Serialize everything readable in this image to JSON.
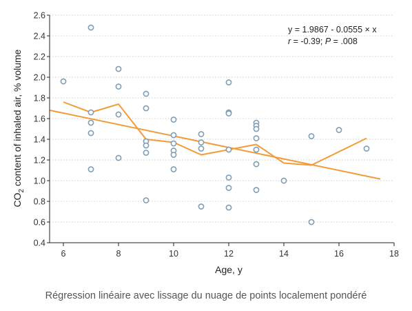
{
  "chart_data": {
    "type": "scatter",
    "xlabel": "Age, y",
    "ylabel_pre": "CO",
    "ylabel_sub": "2",
    "ylabel_post": " content of inhaled air, % volume",
    "xlim": [
      5.5,
      18
    ],
    "ylim": [
      0.4,
      2.6
    ],
    "x_ticks": [
      6,
      8,
      10,
      12,
      14,
      16,
      18
    ],
    "y_ticks": [
      0.4,
      0.6,
      0.8,
      1.0,
      1.2,
      1.4,
      1.6,
      1.8,
      2.0,
      2.2,
      2.4,
      2.6
    ],
    "grid": "horizontal",
    "points": [
      {
        "x": 6,
        "y": 1.96
      },
      {
        "x": 7,
        "y": 2.48
      },
      {
        "x": 7,
        "y": 1.66
      },
      {
        "x": 7,
        "y": 1.56
      },
      {
        "x": 7,
        "y": 1.46
      },
      {
        "x": 7,
        "y": 1.11
      },
      {
        "x": 8,
        "y": 2.08
      },
      {
        "x": 8,
        "y": 1.91
      },
      {
        "x": 8,
        "y": 1.64
      },
      {
        "x": 8,
        "y": 1.22
      },
      {
        "x": 9,
        "y": 1.84
      },
      {
        "x": 9,
        "y": 1.7
      },
      {
        "x": 9,
        "y": 1.38
      },
      {
        "x": 9,
        "y": 1.34
      },
      {
        "x": 9,
        "y": 1.27
      },
      {
        "x": 9,
        "y": 0.81
      },
      {
        "x": 10,
        "y": 1.59
      },
      {
        "x": 10,
        "y": 1.44
      },
      {
        "x": 10,
        "y": 1.36
      },
      {
        "x": 10,
        "y": 1.29
      },
      {
        "x": 10,
        "y": 1.25
      },
      {
        "x": 10,
        "y": 1.11
      },
      {
        "x": 11,
        "y": 1.45
      },
      {
        "x": 11,
        "y": 1.37
      },
      {
        "x": 11,
        "y": 1.31
      },
      {
        "x": 11,
        "y": 0.75
      },
      {
        "x": 12,
        "y": 1.95
      },
      {
        "x": 12,
        "y": 1.66
      },
      {
        "x": 12,
        "y": 1.65
      },
      {
        "x": 12,
        "y": 1.3
      },
      {
        "x": 12,
        "y": 1.03
      },
      {
        "x": 12,
        "y": 0.93
      },
      {
        "x": 12,
        "y": 0.74
      },
      {
        "x": 13,
        "y": 1.56
      },
      {
        "x": 13,
        "y": 1.53
      },
      {
        "x": 13,
        "y": 1.5
      },
      {
        "x": 13,
        "y": 1.41
      },
      {
        "x": 13,
        "y": 1.3
      },
      {
        "x": 13,
        "y": 1.16
      },
      {
        "x": 13,
        "y": 0.91
      },
      {
        "x": 14,
        "y": 1.0
      },
      {
        "x": 15,
        "y": 1.43
      },
      {
        "x": 15,
        "y": 0.6
      },
      {
        "x": 16,
        "y": 1.49
      },
      {
        "x": 17,
        "y": 1.31
      }
    ],
    "regression_line": {
      "x": [
        5.5,
        17.5
      ],
      "y": [
        1.681,
        1.016
      ]
    },
    "loess_line": {
      "x": [
        6,
        7,
        8,
        9,
        10,
        11,
        12,
        13,
        14,
        15,
        17
      ],
      "y": [
        1.76,
        1.66,
        1.74,
        1.4,
        1.37,
        1.25,
        1.3,
        1.35,
        1.17,
        1.15,
        1.41
      ]
    },
    "annotation_line1": "y = 1.9867 - 0.0555 × x",
    "annotation_r": "r",
    "annotation_r_val": " = -0.39; ",
    "annotation_p": "P",
    "annotation_p_val": " = .008",
    "colors": {
      "point": "#7f9db3",
      "line": "#f29b38",
      "grid": "#cccccc",
      "axis": "#222222"
    }
  },
  "caption": "Régression linéaire avec lissage du nuage de points localement pondéré"
}
